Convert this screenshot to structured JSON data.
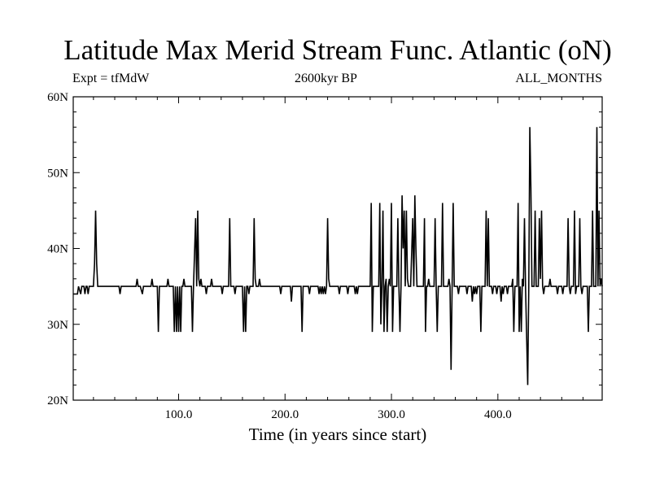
{
  "title": "Latitude Max Merid Stream Func. Atlantic (oN)",
  "left_tag": "Expt = tfMdW",
  "center_tag": "2600kyr BP",
  "right_tag": "ALL_MONTHS",
  "xlabel": "Time (in years since start)",
  "chart_data": {
    "type": "line",
    "title": "Latitude Max Merid Stream Func. Atlantic (oN)",
    "xlabel": "Time (in years since start)",
    "ylabel": "",
    "xlim": [
      1,
      498
    ],
    "ylim": [
      20,
      60
    ],
    "xticks": [
      100,
      200,
      300,
      400
    ],
    "xtick_labels": [
      "100.0",
      "200.0",
      "300.0",
      "400.0"
    ],
    "yticks": [
      20,
      30,
      40,
      50,
      60
    ],
    "ytick_labels": [
      "20N",
      "30N",
      "40N",
      "50N",
      "60N"
    ],
    "series": [
      {
        "color": "#000000",
        "points": [
          [
            1,
            34
          ],
          [
            5,
            34
          ],
          [
            6,
            35
          ],
          [
            8,
            34
          ],
          [
            9,
            35
          ],
          [
            11,
            35
          ],
          [
            12,
            34
          ],
          [
            13,
            35
          ],
          [
            14,
            35
          ],
          [
            15,
            34
          ],
          [
            16,
            35
          ],
          [
            20,
            35
          ],
          [
            21,
            38
          ],
          [
            22,
            45
          ],
          [
            23,
            38
          ],
          [
            24,
            35
          ],
          [
            44,
            35
          ],
          [
            45,
            34
          ],
          [
            46,
            35
          ],
          [
            60,
            35
          ],
          [
            61,
            36
          ],
          [
            62,
            35
          ],
          [
            64,
            35
          ],
          [
            66,
            34
          ],
          [
            67,
            35
          ],
          [
            74,
            35
          ],
          [
            75,
            36
          ],
          [
            76,
            35
          ],
          [
            80,
            35
          ],
          [
            81,
            29
          ],
          [
            82,
            35
          ],
          [
            89,
            35
          ],
          [
            90,
            36
          ],
          [
            91,
            35
          ],
          [
            95,
            35
          ],
          [
            96,
            29
          ],
          [
            97,
            35
          ],
          [
            98,
            29
          ],
          [
            99,
            35
          ],
          [
            100,
            29
          ],
          [
            101,
            35
          ],
          [
            102,
            29
          ],
          [
            103,
            35
          ],
          [
            104,
            35
          ],
          [
            105,
            36
          ],
          [
            106,
            35
          ],
          [
            112,
            35
          ],
          [
            113,
            29
          ],
          [
            114,
            35
          ],
          [
            116,
            44
          ],
          [
            117,
            35
          ],
          [
            118,
            45
          ],
          [
            119,
            36
          ],
          [
            120,
            35
          ],
          [
            121,
            36
          ],
          [
            122,
            35
          ],
          [
            125,
            35
          ],
          [
            126,
            34
          ],
          [
            127,
            35
          ],
          [
            130,
            35
          ],
          [
            131,
            36
          ],
          [
            132,
            35
          ],
          [
            140,
            35
          ],
          [
            141,
            34
          ],
          [
            142,
            35
          ],
          [
            147,
            35
          ],
          [
            148,
            44
          ],
          [
            149,
            35
          ],
          [
            152,
            35
          ],
          [
            153,
            34
          ],
          [
            154,
            35
          ],
          [
            160,
            35
          ],
          [
            161,
            29
          ],
          [
            162,
            35
          ],
          [
            163,
            29
          ],
          [
            164,
            35
          ],
          [
            165,
            35
          ],
          [
            166,
            34
          ],
          [
            167,
            35
          ],
          [
            170,
            35
          ],
          [
            171,
            44
          ],
          [
            172,
            36
          ],
          [
            173,
            35
          ],
          [
            175,
            35
          ],
          [
            176,
            36
          ],
          [
            177,
            35
          ],
          [
            195,
            35
          ],
          [
            196,
            34
          ],
          [
            197,
            35
          ],
          [
            205,
            35
          ],
          [
            206,
            33
          ],
          [
            207,
            35
          ],
          [
            215,
            35
          ],
          [
            216,
            29
          ],
          [
            217,
            35
          ],
          [
            222,
            35
          ],
          [
            223,
            34
          ],
          [
            224,
            35
          ],
          [
            231,
            35
          ],
          [
            232,
            34
          ],
          [
            233,
            35
          ],
          [
            234,
            34
          ],
          [
            235,
            35
          ],
          [
            236,
            34
          ],
          [
            237,
            35
          ],
          [
            238,
            34
          ],
          [
            239,
            35
          ],
          [
            240,
            44
          ],
          [
            241,
            36
          ],
          [
            242,
            35
          ],
          [
            250,
            35
          ],
          [
            251,
            34
          ],
          [
            252,
            35
          ],
          [
            258,
            35
          ],
          [
            259,
            34
          ],
          [
            260,
            35
          ],
          [
            265,
            35
          ],
          [
            266,
            34
          ],
          [
            267,
            35
          ],
          [
            268,
            34
          ],
          [
            269,
            35
          ],
          [
            280,
            35
          ],
          [
            281,
            46
          ],
          [
            282,
            29
          ],
          [
            283,
            35
          ],
          [
            288,
            35
          ],
          [
            289,
            46
          ],
          [
            290,
            30
          ],
          [
            291,
            35
          ],
          [
            292,
            45
          ],
          [
            293,
            29
          ],
          [
            294,
            35
          ],
          [
            295,
            36
          ],
          [
            296,
            29
          ],
          [
            297,
            35
          ],
          [
            298,
            36
          ],
          [
            299,
            35
          ],
          [
            300,
            46
          ],
          [
            301,
            29
          ],
          [
            302,
            35
          ],
          [
            305,
            35
          ],
          [
            306,
            44
          ],
          [
            307,
            35
          ],
          [
            308,
            29
          ],
          [
            309,
            35
          ],
          [
            310,
            47
          ],
          [
            311,
            40
          ],
          [
            312,
            45
          ],
          [
            313,
            35
          ],
          [
            314,
            45
          ],
          [
            315,
            36
          ],
          [
            316,
            35
          ],
          [
            318,
            35
          ],
          [
            320,
            44
          ],
          [
            321,
            35
          ],
          [
            322,
            47
          ],
          [
            323,
            40
          ],
          [
            324,
            35
          ],
          [
            330,
            35
          ],
          [
            331,
            44
          ],
          [
            332,
            29
          ],
          [
            333,
            35
          ],
          [
            334,
            35
          ],
          [
            335,
            36
          ],
          [
            336,
            35
          ],
          [
            340,
            35
          ],
          [
            341,
            44
          ],
          [
            342,
            35
          ],
          [
            343,
            29
          ],
          [
            344,
            35
          ],
          [
            347,
            35
          ],
          [
            348,
            46
          ],
          [
            349,
            35
          ],
          [
            353,
            35
          ],
          [
            354,
            36
          ],
          [
            355,
            35
          ],
          [
            356,
            24
          ],
          [
            357,
            35
          ],
          [
            358,
            46
          ],
          [
            359,
            35
          ],
          [
            362,
            35
          ],
          [
            363,
            34
          ],
          [
            364,
            35
          ],
          [
            370,
            35
          ],
          [
            371,
            34
          ],
          [
            372,
            35
          ],
          [
            375,
            35
          ],
          [
            376,
            33
          ],
          [
            377,
            35
          ],
          [
            378,
            34
          ],
          [
            379,
            35
          ],
          [
            380,
            34
          ],
          [
            381,
            35
          ],
          [
            383,
            35
          ],
          [
            384,
            29
          ],
          [
            385,
            35
          ],
          [
            388,
            35
          ],
          [
            389,
            45
          ],
          [
            390,
            35
          ],
          [
            391,
            44
          ],
          [
            392,
            35
          ],
          [
            394,
            35
          ],
          [
            395,
            34
          ],
          [
            396,
            35
          ],
          [
            398,
            35
          ],
          [
            399,
            34
          ],
          [
            400,
            35
          ],
          [
            402,
            35
          ],
          [
            403,
            33
          ],
          [
            404,
            35
          ],
          [
            405,
            34
          ],
          [
            406,
            35
          ],
          [
            408,
            35
          ],
          [
            409,
            34
          ],
          [
            410,
            35
          ],
          [
            413,
            35
          ],
          [
            414,
            36
          ],
          [
            415,
            29
          ],
          [
            416,
            35
          ],
          [
            418,
            35
          ],
          [
            419,
            46
          ],
          [
            420,
            29
          ],
          [
            421,
            35
          ],
          [
            422,
            29
          ],
          [
            423,
            36
          ],
          [
            424,
            35
          ],
          [
            425,
            44
          ],
          [
            426,
            35
          ],
          [
            428,
            22
          ],
          [
            429,
            35
          ],
          [
            430,
            56
          ],
          [
            431,
            48
          ],
          [
            432,
            35
          ],
          [
            434,
            35
          ],
          [
            435,
            45
          ],
          [
            436,
            35
          ],
          [
            438,
            35
          ],
          [
            439,
            44
          ],
          [
            440,
            36
          ],
          [
            441,
            45
          ],
          [
            442,
            35
          ],
          [
            443,
            34
          ],
          [
            444,
            35
          ],
          [
            448,
            35
          ],
          [
            449,
            36
          ],
          [
            450,
            35
          ],
          [
            455,
            35
          ],
          [
            456,
            34
          ],
          [
            457,
            35
          ],
          [
            460,
            35
          ],
          [
            461,
            34
          ],
          [
            462,
            35
          ],
          [
            465,
            35
          ],
          [
            466,
            44
          ],
          [
            467,
            35
          ],
          [
            468,
            34
          ],
          [
            469,
            35
          ],
          [
            471,
            35
          ],
          [
            472,
            45
          ],
          [
            473,
            34
          ],
          [
            474,
            35
          ],
          [
            476,
            35
          ],
          [
            477,
            44
          ],
          [
            478,
            35
          ],
          [
            479,
            34
          ],
          [
            480,
            35
          ],
          [
            483,
            35
          ],
          [
            484,
            35
          ],
          [
            485,
            29
          ],
          [
            486,
            35
          ],
          [
            488,
            35
          ],
          [
            489,
            45
          ],
          [
            490,
            35
          ],
          [
            492,
            35
          ],
          [
            493,
            56
          ],
          [
            494,
            35
          ],
          [
            495,
            45
          ],
          [
            496,
            35
          ],
          [
            497,
            36
          ],
          [
            498,
            35
          ]
        ]
      }
    ]
  }
}
